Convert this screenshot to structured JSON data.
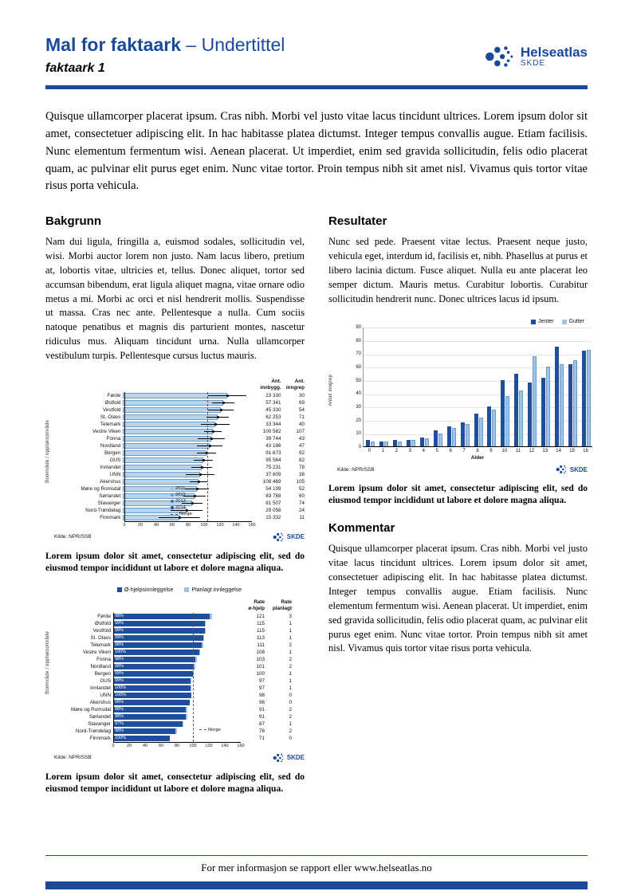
{
  "colors": {
    "brand_blue": "#1b4a9b",
    "bar_dark": "#1f4e9c",
    "bar_light": "#9dc3e6",
    "bar_pale": "#b9d3ea"
  },
  "page": {
    "header": {
      "title_bold": "Mal for faktaark",
      "title_rest": "– Undertittel",
      "subtitle": "faktaark 1",
      "brand_name": "Helseatlas",
      "brand_sub": "SKDE"
    },
    "skde_label": "SKDE",
    "intro": "Quisque ullamcorper placerat ipsum. Cras nibh. Morbi vel justo vitae lacus tincidunt ultrices. Lorem ipsum dolor sit amet, consectetuer adipiscing elit. In hac habitasse platea dictumst. Integer tempus convallis augue. Etiam facilisis. Nunc elementum fermentum wisi. Aenean placerat. Ut imperdiet, enim sed gravida sollicitudin, felis odio placerat quam, ac pulvinar elit purus eget enim. Nunc vitae tortor. Proin tempus nibh sit amet nisl. Vivamus quis tortor vitae risus porta vehicula.",
    "sections": {
      "bakgrunn": {
        "heading": "Bakgrunn",
        "body": "Nam dui ligula, fringilla a, euismod sodales, sollicitudin vel, wisi. Morbi auctor lorem non justo. Nam lacus libero, pretium at, lobortis vitae, ultricies et, tellus. Donec aliquet, tortor sed accumsan bibendum, erat ligula aliquet magna, vitae ornare odio metus a mi. Morbi ac orci et nisl hendrerit mollis. Suspendisse ut massa. Cras nec ante. Pellentesque a nulla. Cum sociis natoque penatibus et magnis dis parturient montes, nascetur ridiculus mus. Aliquam tincidunt urna. Nulla ullamcorper vestibulum turpis. Pellentesque cursus luctus mauris."
      },
      "resultater": {
        "heading": "Resultater",
        "body": "Nunc sed pede. Praesent vitae lectus. Praesent neque justo, vehicula eget, interdum id, facilisis et, nibh. Phasellus at purus et libero lacinia dictum. Fusce aliquet. Nulla eu ante placerat leo semper dictum. Mauris metus. Curabitur lobortis. Curabitur sollicitudin hendrerit nunc. Donec ultrices lacus id ipsum."
      },
      "kommentar": {
        "heading": "Kommentar",
        "body": "Quisque ullamcorper placerat ipsum. Cras nibh. Morbi vel justo vitae lacus tincidunt ultrices. Lorem ipsum dolor sit amet, consectetuer adipiscing elit. In hac habitasse platea dictumst. Integer tempus convallis augue. Etiam facilisis. Nunc elementum fermentum wisi. Aenean placerat. Ut imperdiet, enim sed gravida sollicitudin, felis odio placerat quam, ac pulvinar elit purus eget enim. Nunc vitae tortor. Proin tempus nibh sit amet nisl. Vivamus quis tortor vitae risus porta vehicula."
      }
    },
    "caption": "Lorem ipsum dolor sit amet, consectetur adipiscing elit, sed do eiusmod tempor incididunt ut labore et dolore magna aliqua.",
    "footer": "For mer informasjon se rapport eller www.helseatlas.no"
  },
  "chart_data": [
    {
      "type": "bar",
      "orientation": "horizontal",
      "ylabel": "Boområde / opptaksområde",
      "xlim": [
        0,
        160
      ],
      "xticks": [
        0,
        20,
        40,
        60,
        80,
        100,
        120,
        140,
        160
      ],
      "norge_rate": 104,
      "legend_years": [
        "2011",
        "2012",
        "2013",
        "2014"
      ],
      "legend_norge": "Norge",
      "col_headers": [
        "Ant.\ninnbygg.",
        "Ant.\ninngrep"
      ],
      "source": "Kilde: NPR/SSB",
      "rows": [
        {
          "label": "Førde",
          "rate": 131,
          "ci": 24,
          "innbygg": "23 330",
          "inngrep": "30"
        },
        {
          "label": "Østfold",
          "rate": 126,
          "ci": 14,
          "innbygg": "57 341",
          "inngrep": "69"
        },
        {
          "label": "Vestfold",
          "rate": 123,
          "ci": 16,
          "innbygg": "45 330",
          "inngrep": "54"
        },
        {
          "label": "St. Olavs",
          "rate": 119,
          "ci": 14,
          "innbygg": "62 253",
          "inngrep": "71"
        },
        {
          "label": "Telemark",
          "rate": 116,
          "ci": 18,
          "innbygg": "33 344",
          "inngrep": "40"
        },
        {
          "label": "Vestre Viken",
          "rate": 113,
          "ci": 11,
          "innbygg": "100 582",
          "inngrep": "107"
        },
        {
          "label": "Fonna",
          "rate": 111,
          "ci": 17,
          "innbygg": "39 744",
          "inngrep": "43"
        },
        {
          "label": "Nordland",
          "rate": 109,
          "ci": 16,
          "innbygg": "43 186",
          "inngrep": "47"
        },
        {
          "label": "Bergen",
          "rate": 105,
          "ci": 12,
          "innbygg": "91 673",
          "inngrep": "92"
        },
        {
          "label": "OUS",
          "rate": 101,
          "ci": 12,
          "innbygg": "95 564",
          "inngrep": "82"
        },
        {
          "label": "Innlandet",
          "rate": 99,
          "ci": 13,
          "innbygg": "75 231",
          "inngrep": "78"
        },
        {
          "label": "UNN",
          "rate": 97,
          "ci": 18,
          "innbygg": "37 609",
          "inngrep": "38"
        },
        {
          "label": "Akershus",
          "rate": 95,
          "ci": 11,
          "innbygg": "108 469",
          "inngrep": "105"
        },
        {
          "label": "Møre og Romsdal",
          "rate": 93,
          "ci": 15,
          "innbygg": "54 199",
          "inngrep": "52"
        },
        {
          "label": "Sørlandet",
          "rate": 90,
          "ci": 14,
          "innbygg": "83 788",
          "inngrep": "60"
        },
        {
          "label": "Stavanger",
          "rate": 87,
          "ci": 13,
          "innbygg": "81 507",
          "inngrep": "74"
        },
        {
          "label": "Nord-Trøndelag",
          "rate": 80,
          "ci": 20,
          "innbygg": "29 058",
          "inngrep": "24"
        },
        {
          "label": "Finnmark",
          "rate": 71,
          "ci": 26,
          "innbygg": "15 332",
          "inngrep": "11"
        }
      ]
    },
    {
      "type": "stacked-bar",
      "orientation": "horizontal",
      "ylabel": "Boområde / opptaksområde",
      "xlim": [
        0,
        160
      ],
      "xticks": [
        0,
        20,
        40,
        60,
        80,
        100,
        120,
        140,
        160
      ],
      "norge_rate": 100,
      "legend": [
        "Ø-hjelpsinnleggelse",
        "Planlagt innleggelse"
      ],
      "legend_norge": "Norge",
      "col_headers": [
        "Rate\nø-hjelp",
        "Rate\nplanlagt"
      ],
      "source": "Kilde: NPR/SSB",
      "rows": [
        {
          "label": "Førde",
          "pct": "98%",
          "rate_ohjelp": 121,
          "rate_planlagt": 3
        },
        {
          "label": "Østfold",
          "pct": "99%",
          "rate_ohjelp": 115,
          "rate_planlagt": 1
        },
        {
          "label": "Vestfold",
          "pct": "99%",
          "rate_ohjelp": 115,
          "rate_planlagt": 1
        },
        {
          "label": "St. Olavs",
          "pct": "99%",
          "rate_ohjelp": 113,
          "rate_planlagt": 1
        },
        {
          "label": "Telemark",
          "pct": "98%",
          "rate_ohjelp": 111,
          "rate_planlagt": 2
        },
        {
          "label": "Vestre Viken",
          "pct": "100%",
          "rate_ohjelp": 108,
          "rate_planlagt": 1
        },
        {
          "label": "Fonna",
          "pct": "98%",
          "rate_ohjelp": 103,
          "rate_planlagt": 2
        },
        {
          "label": "Nordland",
          "pct": "98%",
          "rate_ohjelp": 101,
          "rate_planlagt": 2
        },
        {
          "label": "Bergen",
          "pct": "99%",
          "rate_ohjelp": 100,
          "rate_planlagt": 1
        },
        {
          "label": "OUS",
          "pct": "99%",
          "rate_ohjelp": 97,
          "rate_planlagt": 1
        },
        {
          "label": "Innlandet",
          "pct": "100%",
          "rate_ohjelp": 97,
          "rate_planlagt": 1
        },
        {
          "label": "UNN",
          "pct": "100%",
          "rate_ohjelp": 98,
          "rate_planlagt": 0
        },
        {
          "label": "Akershus",
          "pct": "98%",
          "rate_ohjelp": 96,
          "rate_planlagt": 0
        },
        {
          "label": "Møre og Romsdal",
          "pct": "98%",
          "rate_ohjelp": 91,
          "rate_planlagt": 2
        },
        {
          "label": "Sørlandet",
          "pct": "98%",
          "rate_ohjelp": 91,
          "rate_planlagt": 2
        },
        {
          "label": "Stavanger",
          "pct": "97%",
          "rate_ohjelp": 87,
          "rate_planlagt": 1
        },
        {
          "label": "Nord-Trøndelag",
          "pct": "98%",
          "rate_ohjelp": 78,
          "rate_planlagt": 2
        },
        {
          "label": "Finnmark",
          "pct": "100%",
          "rate_ohjelp": 71,
          "rate_planlagt": 0
        }
      ]
    },
    {
      "type": "bar",
      "orientation": "vertical",
      "xlabel": "Alder",
      "ylabel": "Antall inngrep",
      "ylim": [
        0,
        90
      ],
      "yticks": [
        0,
        10,
        20,
        30,
        40,
        50,
        60,
        70,
        80,
        90
      ],
      "categories": [
        "0",
        "1",
        "2",
        "3",
        "4",
        "5",
        "6",
        "7",
        "8",
        "9",
        "10",
        "11",
        "12",
        "13",
        "14",
        "15",
        "16"
      ],
      "series": [
        {
          "name": "Jenter",
          "values": [
            5,
            4,
            5,
            5,
            7,
            12,
            15,
            18,
            25,
            30,
            50,
            55,
            48,
            52,
            75,
            62,
            72
          ]
        },
        {
          "name": "Gutter",
          "values": [
            4,
            4,
            4,
            5,
            6,
            10,
            14,
            17,
            22,
            28,
            38,
            42,
            68,
            60,
            62,
            65,
            73
          ]
        }
      ],
      "source": "Kilde: NPR/SSB"
    }
  ]
}
